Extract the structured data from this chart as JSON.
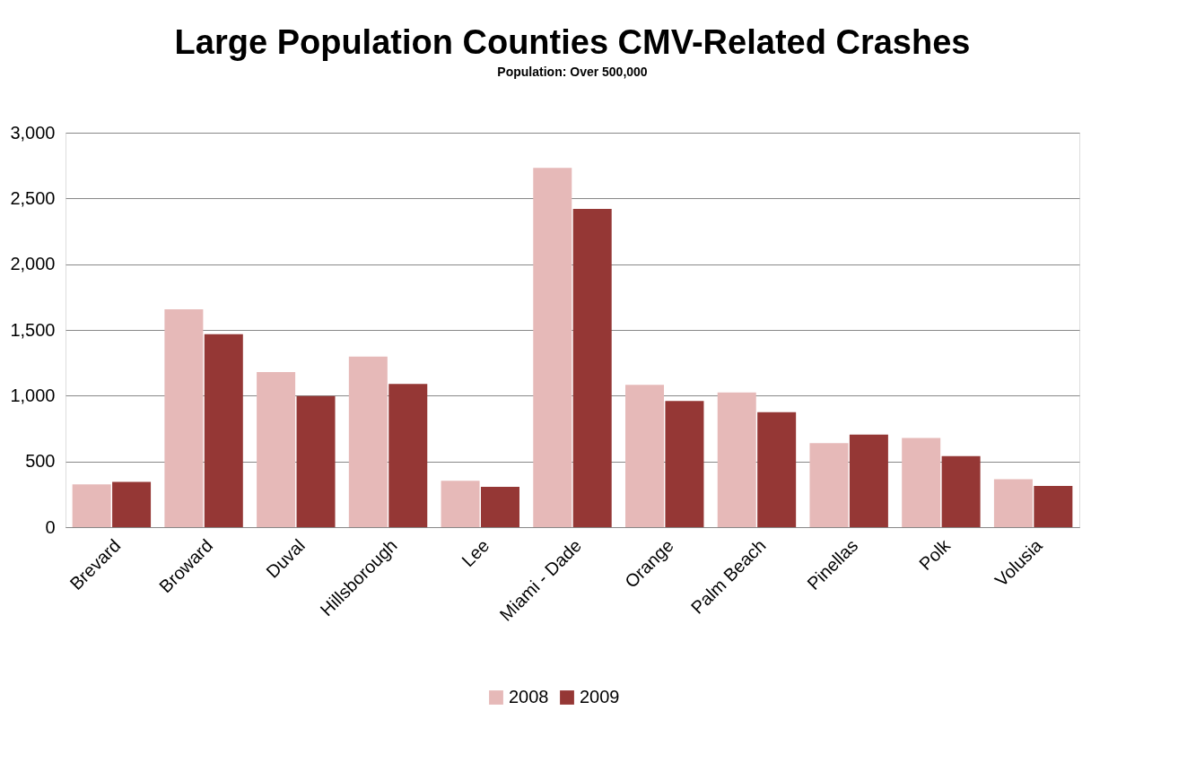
{
  "chart_data": {
    "type": "bar",
    "title": "Large Population Counties CMV-Related Crashes",
    "subtitle": "Population:  Over 500,000",
    "categories": [
      "Brevard",
      "Broward",
      "Duval",
      "Hillsborough",
      "Lee",
      "Miami - Dade",
      "Orange",
      "Palm Beach",
      "Pinellas",
      "Polk",
      "Volusia"
    ],
    "series": [
      {
        "name": "2008",
        "color": "#e6b9b8",
        "values": [
          326,
          1657,
          1180,
          1298,
          352,
          2733,
          1083,
          1024,
          639,
          678,
          365
        ]
      },
      {
        "name": "2009",
        "color": "#953735",
        "values": [
          345,
          1467,
          998,
          1089,
          307,
          2420,
          959,
          874,
          704,
          541,
          313
        ]
      }
    ],
    "ylim": [
      0,
      3000
    ],
    "yticks": [
      0,
      500,
      {
        "value": 1000,
        "label": "1,000"
      },
      {
        "value": 1500,
        "label": "1,500"
      },
      {
        "value": 2000,
        "label": "2,000"
      },
      {
        "value": 2500,
        "label": "2,500"
      },
      {
        "value": 3000,
        "label": "3,000"
      }
    ],
    "grid": "y",
    "legend": "bottom"
  }
}
